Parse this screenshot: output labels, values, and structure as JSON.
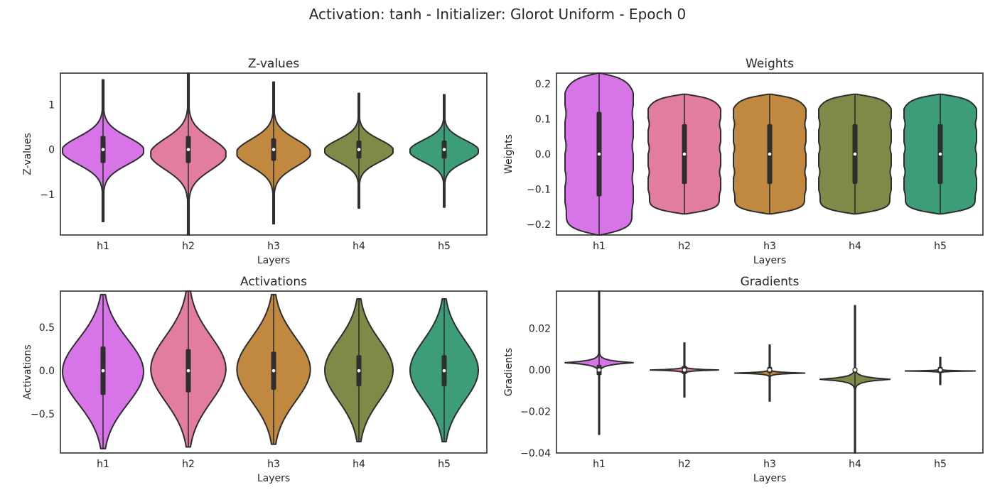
{
  "figure": {
    "suptitle": "Activation: tanh - Initializer: Glorot Uniform  - Epoch 0"
  },
  "chart_data": [
    {
      "type": "violin",
      "title": "Z-values",
      "xlabel": "Layers",
      "ylabel": "Z-values",
      "categories": [
        "h1",
        "h2",
        "h3",
        "h4",
        "h5"
      ],
      "colors": [
        "#d674e8",
        "#e27d9e",
        "#c0893f",
        "#7f8a49",
        "#3c9d78"
      ],
      "ylim": [
        -1.9,
        1.7
      ],
      "yticks": [
        1,
        0,
        -1
      ],
      "ytick_labels": [
        "1",
        "0",
        "−1"
      ],
      "violins": [
        {
          "name": "h1",
          "min": -1.6,
          "max": 1.55,
          "q1": -0.3,
          "median": 0.0,
          "q3": 0.3,
          "width": 0.95,
          "shape": "bell"
        },
        {
          "name": "h2",
          "min": -1.9,
          "max": 1.7,
          "q1": -0.3,
          "median": 0.0,
          "q3": 0.3,
          "width": 0.88,
          "shape": "bell"
        },
        {
          "name": "h3",
          "min": -1.65,
          "max": 1.5,
          "q1": -0.25,
          "median": 0.0,
          "q3": 0.25,
          "width": 0.86,
          "shape": "bell"
        },
        {
          "name": "h4",
          "min": -1.3,
          "max": 1.25,
          "q1": -0.2,
          "median": 0.0,
          "q3": 0.2,
          "width": 0.8,
          "shape": "bell"
        },
        {
          "name": "h5",
          "min": -1.28,
          "max": 1.22,
          "q1": -0.2,
          "median": 0.0,
          "q3": 0.2,
          "width": 0.8,
          "shape": "bell"
        }
      ]
    },
    {
      "type": "violin",
      "title": "Weights",
      "xlabel": "Layers",
      "ylabel": "Weights",
      "categories": [
        "h1",
        "h2",
        "h3",
        "h4",
        "h5"
      ],
      "colors": [
        "#d674e8",
        "#e27d9e",
        "#c0893f",
        "#7f8a49",
        "#3c9d78"
      ],
      "ylim": [
        -0.23,
        0.23
      ],
      "yticks": [
        0.2,
        0.1,
        0.0,
        -0.1,
        -0.2
      ],
      "ytick_labels": [
        "0.2",
        "0.1",
        "0.0",
        "−0.1",
        "−0.2"
      ],
      "violins": [
        {
          "name": "h1",
          "min": -0.23,
          "max": 0.23,
          "q1": -0.12,
          "median": 0.0,
          "q3": 0.12,
          "width": 0.8,
          "shape": "flat"
        },
        {
          "name": "h2",
          "min": -0.17,
          "max": 0.17,
          "q1": -0.085,
          "median": 0.0,
          "q3": 0.085,
          "width": 0.85,
          "shape": "flat"
        },
        {
          "name": "h3",
          "min": -0.17,
          "max": 0.17,
          "q1": -0.085,
          "median": 0.0,
          "q3": 0.085,
          "width": 0.85,
          "shape": "flat"
        },
        {
          "name": "h4",
          "min": -0.17,
          "max": 0.17,
          "q1": -0.085,
          "median": 0.0,
          "q3": 0.085,
          "width": 0.85,
          "shape": "flat"
        },
        {
          "name": "h5",
          "min": -0.17,
          "max": 0.17,
          "q1": -0.085,
          "median": 0.0,
          "q3": 0.085,
          "width": 0.85,
          "shape": "flat"
        }
      ]
    },
    {
      "type": "violin",
      "title": "Activations",
      "xlabel": "Layers",
      "ylabel": "Activations",
      "categories": [
        "h1",
        "h2",
        "h3",
        "h4",
        "h5"
      ],
      "colors": [
        "#d674e8",
        "#e27d9e",
        "#c0893f",
        "#7f8a49",
        "#3c9d78"
      ],
      "ylim": [
        -0.95,
        0.92
      ],
      "yticks": [
        0.5,
        0.0,
        -0.5
      ],
      "ytick_labels": [
        "0.5",
        "0.0",
        "−0.5"
      ],
      "violins": [
        {
          "name": "h1",
          "min": -0.9,
          "max": 0.88,
          "q1": -0.28,
          "median": 0.0,
          "q3": 0.28,
          "width": 0.95,
          "shape": "wide"
        },
        {
          "name": "h2",
          "min": -0.88,
          "max": 0.92,
          "q1": -0.25,
          "median": 0.0,
          "q3": 0.25,
          "width": 0.88,
          "shape": "wide"
        },
        {
          "name": "h3",
          "min": -0.85,
          "max": 0.88,
          "q1": -0.22,
          "median": 0.0,
          "q3": 0.22,
          "width": 0.86,
          "shape": "wide"
        },
        {
          "name": "h4",
          "min": -0.82,
          "max": 0.83,
          "q1": -0.18,
          "median": 0.0,
          "q3": 0.18,
          "width": 0.8,
          "shape": "wide"
        },
        {
          "name": "h5",
          "min": -0.82,
          "max": 0.83,
          "q1": -0.18,
          "median": 0.0,
          "q3": 0.18,
          "width": 0.8,
          "shape": "wide"
        }
      ]
    },
    {
      "type": "violin",
      "title": "Gradients",
      "xlabel": "Layers",
      "ylabel": "Gradients",
      "categories": [
        "h1",
        "h2",
        "h3",
        "h4",
        "h5"
      ],
      "colors": [
        "#d674e8",
        "#e27d9e",
        "#c0893f",
        "#7f8a49",
        "#3c9d78"
      ],
      "ylim": [
        -0.04,
        0.038
      ],
      "yticks": [
        0.02,
        0.0,
        -0.02,
        -0.04
      ],
      "ytick_labels": [
        "0.02",
        "0.00",
        "−0.02",
        "−0.04"
      ],
      "violins": [
        {
          "name": "h1",
          "min": -0.031,
          "max": 0.038,
          "q1": -0.0025,
          "median": 0.0,
          "q3": 0.0025,
          "width": 0.8,
          "shape": "spike"
        },
        {
          "name": "h2",
          "min": -0.013,
          "max": 0.013,
          "q1": -0.002,
          "median": 0.0,
          "q3": 0.002,
          "width": 0.8,
          "shape": "spike"
        },
        {
          "name": "h3",
          "min": -0.015,
          "max": 0.012,
          "q1": -0.0015,
          "median": 0.0,
          "q3": 0.0015,
          "width": 0.82,
          "shape": "spike"
        },
        {
          "name": "h4",
          "min": -0.04,
          "max": 0.031,
          "q1": -0.001,
          "median": 0.0,
          "q3": 0.001,
          "width": 0.82,
          "shape": "spike"
        },
        {
          "name": "h5",
          "min": -0.007,
          "max": 0.006,
          "q1": -0.0015,
          "median": 0.0,
          "q3": 0.0015,
          "width": 0.82,
          "shape": "spike"
        }
      ]
    }
  ]
}
